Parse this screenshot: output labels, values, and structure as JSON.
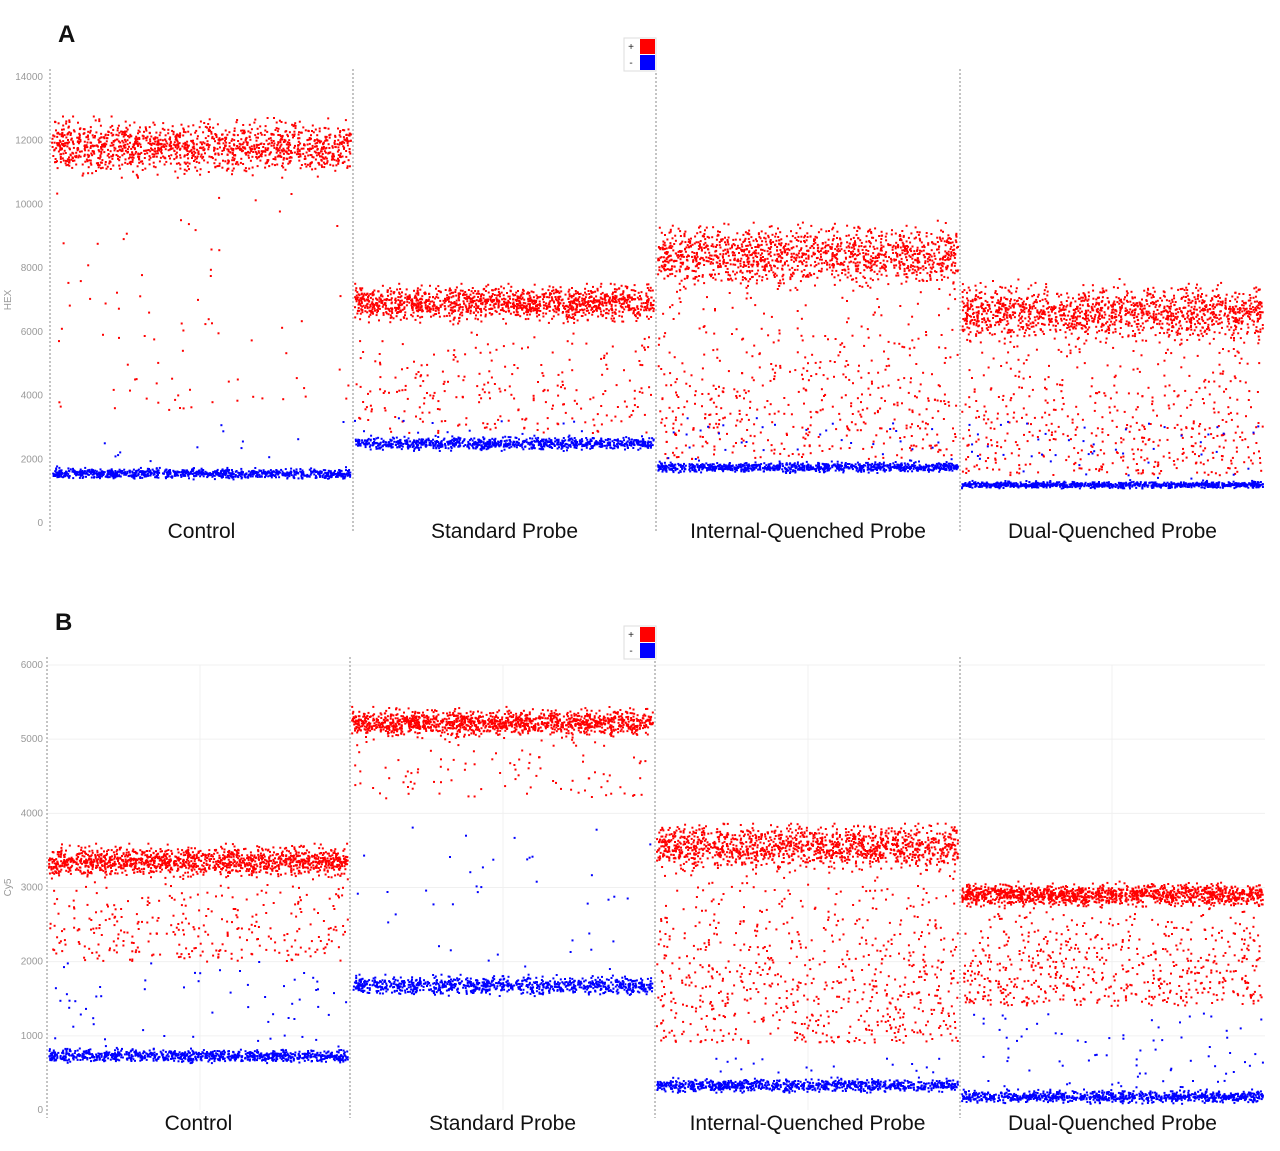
{
  "chart_data": [
    {
      "type": "scatter",
      "panel_label": "A",
      "ylabel": "HEX",
      "ylim": [
        0,
        14000
      ],
      "yticks": [
        "0",
        "2000",
        "4000",
        "6000",
        "8000",
        "10000",
        "12000",
        "14000"
      ],
      "legend": [
        {
          "label": "+",
          "color": "#ff0000"
        },
        {
          "label": "-",
          "color": "#0000ff"
        }
      ],
      "legend_position": "top-center",
      "categories": [
        "Control",
        "Standard Probe",
        "Internal-Quenched Probe",
        "Dual-Quenched Probe"
      ],
      "series": [
        {
          "name": "+",
          "color": "#ff0000",
          "clusters": [
            {
              "mean": 11800,
              "min": 11000,
              "max": 12600,
              "rain_min": 3500,
              "rain_count": 80
            },
            {
              "mean": 6900,
              "min": 6300,
              "max": 7400,
              "rain_min": 2800,
              "rain_count": 250
            },
            {
              "mean": 8400,
              "min": 7400,
              "max": 9300,
              "rain_min": 2000,
              "rain_count": 500
            },
            {
              "mean": 6600,
              "min": 5800,
              "max": 7500,
              "rain_min": 1500,
              "rain_count": 500
            }
          ]
        },
        {
          "name": "-",
          "color": "#0000ff",
          "clusters": [
            {
              "mean": 1550,
              "min": 1400,
              "max": 1700,
              "rain_max": 3200,
              "rain_count": 15
            },
            {
              "mean": 2500,
              "min": 2300,
              "max": 2700,
              "rain_max": 3300,
              "rain_count": 15
            },
            {
              "mean": 1750,
              "min": 1600,
              "max": 1900,
              "rain_max": 3300,
              "rain_count": 40
            },
            {
              "mean": 1200,
              "min": 1100,
              "max": 1300,
              "rain_max": 3200,
              "rain_count": 50
            }
          ]
        }
      ]
    },
    {
      "type": "scatter",
      "panel_label": "B",
      "ylabel": "Cy5",
      "ylim": [
        0,
        6000
      ],
      "yticks": [
        "0",
        "1000",
        "2000",
        "3000",
        "4000",
        "5000",
        "6000"
      ],
      "legend": [
        {
          "label": "+",
          "color": "#ff0000"
        },
        {
          "label": "-",
          "color": "#0000ff"
        }
      ],
      "legend_position": "top-center",
      "categories": [
        "Control",
        "Standard Probe",
        "Internal-Quenched Probe",
        "Dual-Quenched Probe"
      ],
      "series": [
        {
          "name": "+",
          "color": "#ff0000",
          "clusters": [
            {
              "mean": 3350,
              "min": 3150,
              "max": 3550,
              "rain_min": 2000,
              "rain_count": 300
            },
            {
              "mean": 5220,
              "min": 5050,
              "max": 5400,
              "rain_min": 4200,
              "rain_count": 100
            },
            {
              "mean": 3550,
              "min": 3200,
              "max": 3800,
              "rain_min": 900,
              "rain_count": 700
            },
            {
              "mean": 2900,
              "min": 2750,
              "max": 3050,
              "rain_min": 1400,
              "rain_count": 600
            }
          ]
        },
        {
          "name": "-",
          "color": "#0000ff",
          "clusters": [
            {
              "mean": 730,
              "min": 650,
              "max": 820,
              "rain_max": 2000,
              "rain_count": 60
            },
            {
              "mean": 1680,
              "min": 1560,
              "max": 1800,
              "rain_max": 3900,
              "rain_count": 40
            },
            {
              "mean": 330,
              "min": 250,
              "max": 420,
              "rain_max": 700,
              "rain_count": 20
            },
            {
              "mean": 180,
              "min": 100,
              "max": 260,
              "rain_max": 1300,
              "rain_count": 80
            }
          ]
        }
      ]
    }
  ]
}
